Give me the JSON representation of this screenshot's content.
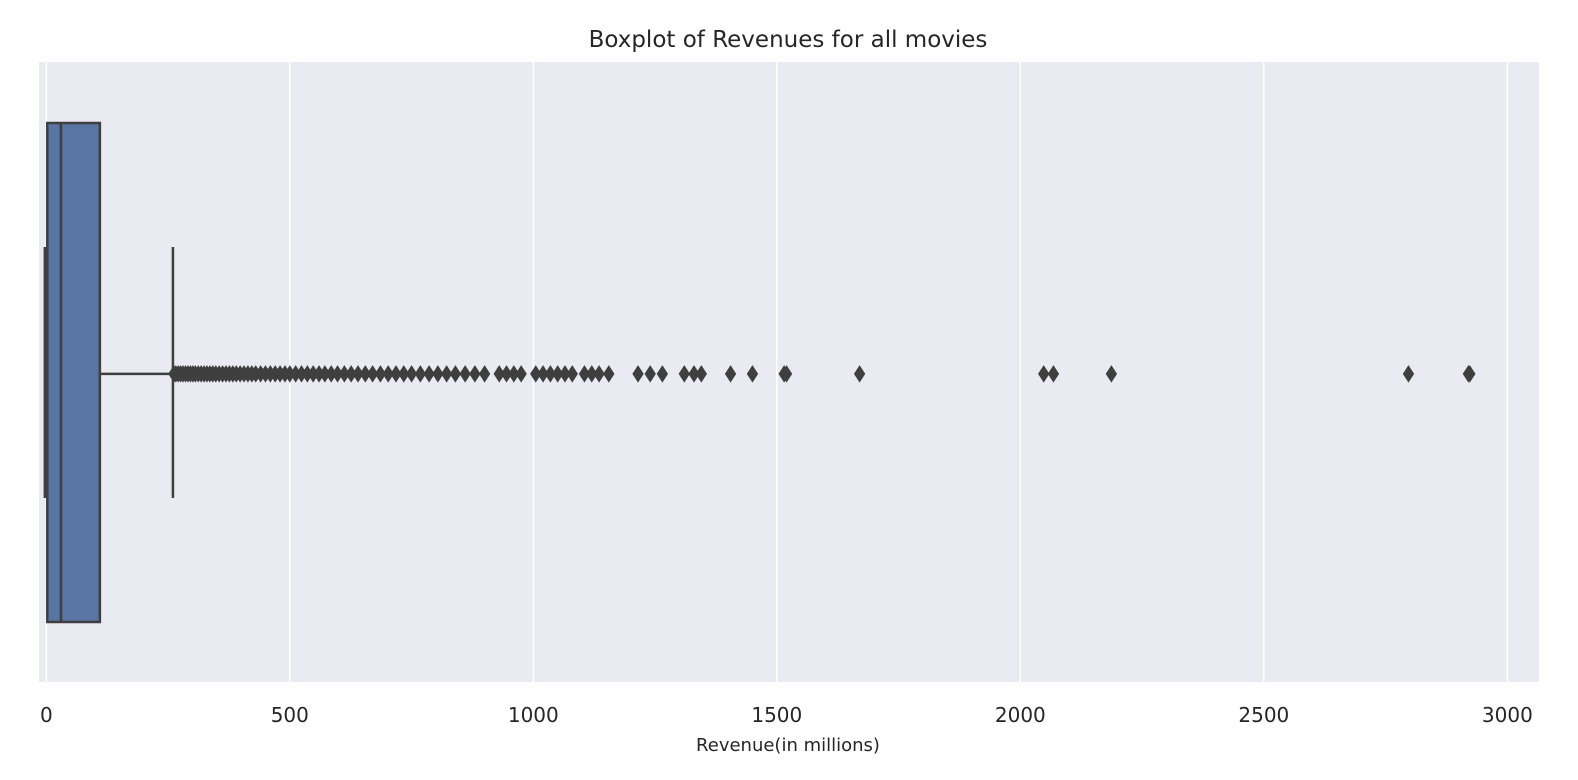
{
  "chart_data": {
    "type": "boxplot",
    "orientation": "horizontal",
    "title": "Boxplot of Revenues for all movies",
    "xlabel": "Revenue(in millions)",
    "ylabel": "",
    "xlim": [
      -15,
      3065
    ],
    "xticks": [
      0,
      500,
      1000,
      1500,
      2000,
      2500,
      3000
    ],
    "xtick_labels": [
      "0",
      "500",
      "1000",
      "1500",
      "2000",
      "2500",
      "3000"
    ],
    "grid": true,
    "colors": {
      "background": "#eaeaf2",
      "grid": "#ffffff",
      "box": "#5975a4",
      "lines": "#3f3f3f",
      "text": "#262626"
    },
    "box": {
      "whisker_low": -3,
      "q1": 2,
      "median": 30,
      "q3": 110,
      "whisker_high": 260
    },
    "outliers": [
      262,
      266,
      271,
      276,
      281,
      286,
      291,
      296,
      301,
      306,
      312,
      318,
      324,
      330,
      336,
      342,
      348,
      355,
      362,
      369,
      376,
      383,
      390,
      398,
      406,
      414,
      422,
      430,
      440,
      450,
      460,
      470,
      480,
      490,
      500,
      512,
      524,
      536,
      548,
      560,
      572,
      585,
      598,
      612,
      626,
      640,
      655,
      670,
      686,
      702,
      718,
      734,
      750,
      768,
      786,
      804,
      822,
      840,
      860,
      880,
      900,
      930,
      945,
      960,
      975,
      1005,
      1020,
      1035,
      1050,
      1065,
      1080,
      1105,
      1120,
      1135,
      1155,
      1215,
      1240,
      1265,
      1310,
      1330,
      1345,
      1405,
      1450,
      1515,
      1520,
      1670,
      2048,
      2068,
      2187,
      2797,
      2920,
      2923
    ]
  }
}
